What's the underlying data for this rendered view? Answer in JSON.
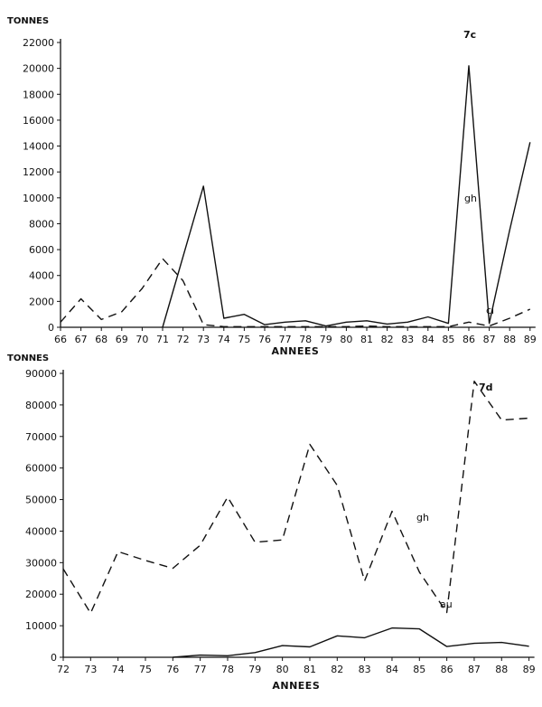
{
  "chart_data": [
    {
      "type": "line",
      "panel_label": "7c",
      "ylabel": "TONNES",
      "xlabel": "ANNEES",
      "ylim": [
        0,
        22000
      ],
      "yticks": [
        0,
        2000,
        4000,
        6000,
        8000,
        10000,
        12000,
        14000,
        16000,
        18000,
        20000,
        22000
      ],
      "yticklabels": [
        "0",
        "2000",
        "4000",
        "6000",
        "8000",
        "10000",
        "12000",
        "14000",
        "16000",
        "18000",
        "20000",
        "22000"
      ],
      "categories": [
        "66",
        "67",
        "68",
        "69",
        "70",
        "71",
        "72",
        "73",
        "74",
        "75",
        "76",
        "77",
        "78",
        "79",
        "80",
        "81",
        "82",
        "83",
        "84",
        "85",
        "86",
        "87",
        "88",
        "89"
      ],
      "series": [
        {
          "name": "gh",
          "style": "solid",
          "points": [
            [
              71,
              0
            ],
            [
              73,
              10900
            ],
            [
              74,
              700
            ],
            [
              75,
              1000
            ],
            [
              76,
              200
            ],
            [
              77,
              400
            ],
            [
              78,
              500
            ],
            [
              79,
              100
            ],
            [
              80,
              400
            ],
            [
              81,
              500
            ],
            [
              82,
              250
            ],
            [
              83,
              400
            ],
            [
              84,
              800
            ],
            [
              85,
              300
            ],
            [
              86,
              20200
            ],
            [
              87,
              300
            ],
            [
              88,
              7500
            ],
            [
              89,
              14300
            ]
          ]
        },
        {
          "name": "ci",
          "style": "dashed",
          "points": [
            [
              66,
              400
            ],
            [
              67,
              2200
            ],
            [
              68,
              600
            ],
            [
              69,
              1200
            ],
            [
              70,
              3000
            ],
            [
              71,
              5300
            ],
            [
              72,
              3600
            ],
            [
              73,
              200
            ],
            [
              74,
              50
            ],
            [
              75,
              50
            ],
            [
              76,
              50
            ],
            [
              77,
              50
            ],
            [
              78,
              50
            ],
            [
              79,
              50
            ],
            [
              80,
              50
            ],
            [
              81,
              100
            ],
            [
              82,
              50
            ],
            [
              83,
              50
            ],
            [
              84,
              50
            ],
            [
              85,
              50
            ],
            [
              86,
              400
            ],
            [
              87,
              100
            ],
            [
              88,
              700
            ],
            [
              89,
              1400
            ]
          ]
        }
      ]
    },
    {
      "type": "line",
      "panel_label": "7d",
      "ylabel": "TONNES",
      "xlabel": "ANNEES",
      "ylim": [
        0,
        90000
      ],
      "yticks": [
        0,
        10000,
        20000,
        30000,
        40000,
        50000,
        60000,
        70000,
        80000,
        90000
      ],
      "yticklabels": [
        "0",
        "10000",
        "20000",
        "30000",
        "40000",
        "50000",
        "60000",
        "70000",
        "80000",
        "90000"
      ],
      "categories": [
        "72",
        "73",
        "74",
        "75",
        "76",
        "77",
        "78",
        "79",
        "80",
        "81",
        "82",
        "83",
        "84",
        "85",
        "86",
        "87",
        "88",
        "89"
      ],
      "series": [
        {
          "name": "gh",
          "style": "dashed",
          "points": [
            [
              72,
              28000
            ],
            [
              73,
              14000
            ],
            [
              74,
              33500
            ],
            [
              75,
              30700
            ],
            [
              76,
              28200
            ],
            [
              77,
              35500
            ],
            [
              78,
              50800
            ],
            [
              79,
              36500
            ],
            [
              80,
              37200
            ],
            [
              81,
              67500
            ],
            [
              82,
              54500
            ],
            [
              83,
              24200
            ],
            [
              84,
              46300
            ],
            [
              85,
              27000
            ],
            [
              86,
              14200
            ],
            [
              87,
              87500
            ],
            [
              88,
              75200
            ],
            [
              89,
              75800
            ]
          ]
        },
        {
          "name": "au",
          "style": "solid",
          "points": [
            [
              76,
              0
            ],
            [
              77,
              700
            ],
            [
              78,
              500
            ],
            [
              79,
              1500
            ],
            [
              80,
              3700
            ],
            [
              81,
              3300
            ],
            [
              82,
              6800
            ],
            [
              83,
              6200
            ],
            [
              84,
              9300
            ],
            [
              85,
              9000
            ],
            [
              86,
              3400
            ],
            [
              87,
              4400
            ],
            [
              88,
              4700
            ],
            [
              89,
              3500
            ]
          ]
        }
      ]
    }
  ]
}
